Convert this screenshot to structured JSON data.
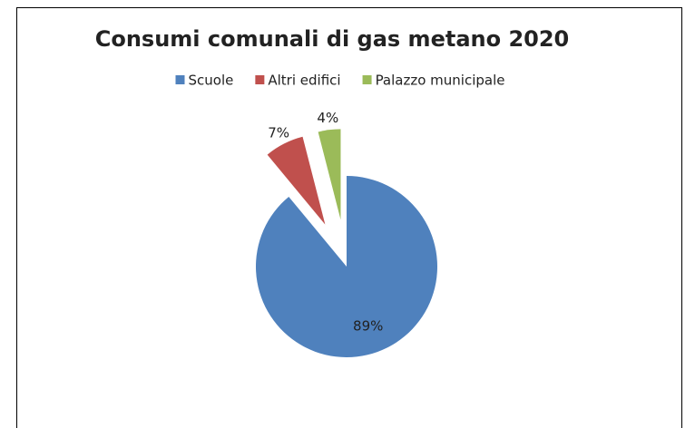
{
  "chart_data": {
    "type": "pie",
    "title": "Consumi comunali di gas metano 2020",
    "categories": [
      "Scuole",
      "Altri edifici",
      "Palazzo municipale"
    ],
    "values": [
      89,
      7,
      4
    ],
    "value_labels": [
      "89%",
      "7%",
      "4%"
    ],
    "colors": [
      "#4f81bd",
      "#c0504d",
      "#9bbb59"
    ],
    "exploded": [
      false,
      true,
      true
    ],
    "legend": "top"
  }
}
